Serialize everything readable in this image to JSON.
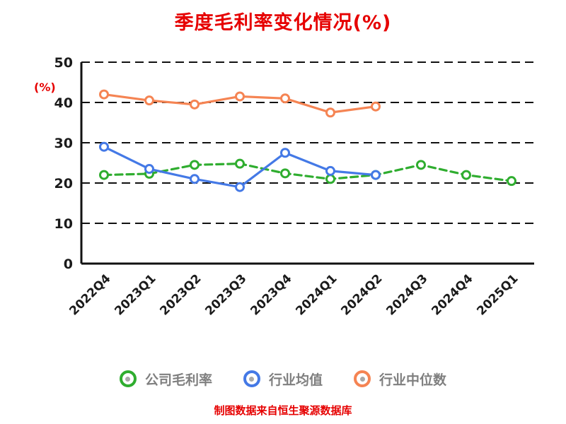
{
  "title": "季度毛利率变化情况(%)",
  "y_axis_unit": "(%)",
  "footer": "制图数据来自恒生聚源数据库",
  "colors": {
    "company": "#2fad2f",
    "industry_avg": "#4479e6",
    "industry_median": "#f58453",
    "title_text": "#e60000",
    "footer_text": "#e60000",
    "axis": "#111111",
    "tick_text": "#1a1a1a",
    "legend_text": "#7f7f7f"
  },
  "chart_data": {
    "type": "line",
    "title": "季度毛利率变化情况(%)",
    "ylabel": "(%)",
    "xlabel": "",
    "ylim": [
      0,
      50
    ],
    "yticks": [
      0,
      10,
      20,
      30,
      40,
      50
    ],
    "grid": "dashed-horizontal",
    "legend_position": "bottom",
    "categories": [
      "2022Q4",
      "2023Q1",
      "2023Q2",
      "2023Q3",
      "2023Q4",
      "2024Q1",
      "2024Q2",
      "2024Q3",
      "2024Q4",
      "2025Q1"
    ],
    "series": [
      {
        "name": "公司毛利率",
        "color_key": "company",
        "style": "dashed",
        "values": [
          22,
          22.3,
          24.5,
          24.8,
          22.4,
          21,
          22,
          24.5,
          22,
          20.5
        ]
      },
      {
        "name": "行业均值",
        "color_key": "industry_avg",
        "style": "solid",
        "values": [
          29,
          23.5,
          21,
          19,
          27.5,
          23,
          22,
          null,
          null,
          null
        ]
      },
      {
        "name": "行业中位数",
        "color_key": "industry_median",
        "style": "solid",
        "values": [
          42,
          40.5,
          39.5,
          41.5,
          41,
          37.5,
          39,
          null,
          null,
          null
        ]
      }
    ]
  }
}
